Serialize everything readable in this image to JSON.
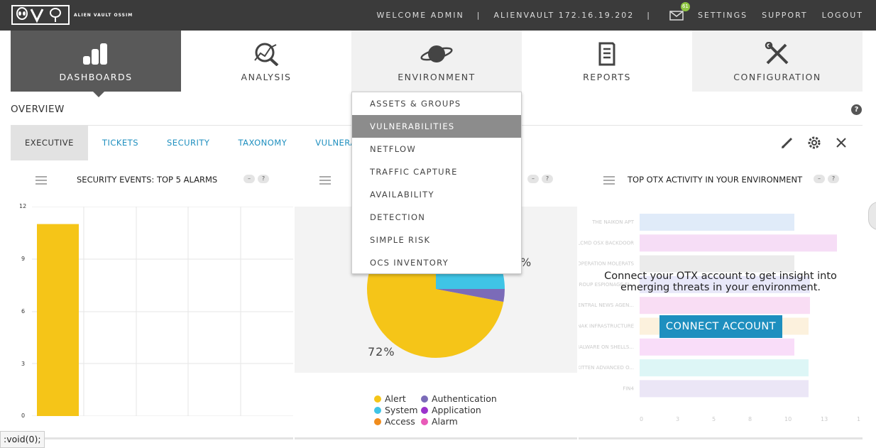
{
  "header": {
    "logo_text": "ALIEN VAULT OSSIM",
    "welcome": "WELCOME ADMIN",
    "separator": "|",
    "host": "ALIENVAULT 172.16.19.202",
    "mail_count": "61",
    "links": [
      "SETTINGS",
      "SUPPORT",
      "LOGOUT"
    ]
  },
  "nav": [
    {
      "label": "DASHBOARDS",
      "icon": "bar-chart-icon"
    },
    {
      "label": "ANALYSIS",
      "icon": "magnifier-chart-icon"
    },
    {
      "label": "ENVIRONMENT",
      "icon": "planet-icon"
    },
    {
      "label": "REPORTS",
      "icon": "document-icon"
    },
    {
      "label": "CONFIGURATION",
      "icon": "tools-icon"
    }
  ],
  "environment_menu": [
    "ASSETS & GROUPS",
    "VULNERABILITIES",
    "NETFLOW",
    "TRAFFIC CAPTURE",
    "AVAILABILITY",
    "DETECTION",
    "SIMPLE RISK",
    "OCS INVENTORY"
  ],
  "page": {
    "title": "OVERVIEW",
    "help": "?"
  },
  "subtabs": [
    "EXECUTIVE",
    "TICKETS",
    "SECURITY",
    "TAXONOMY",
    "VULNERABI"
  ],
  "panels": {
    "alarms": {
      "title": "SECURITY EVENTS: TOP 5 ALARMS",
      "yticks": [
        "12",
        "9",
        "6",
        "3",
        "0"
      ]
    },
    "events": {
      "pie_label_main": "72%",
      "pie_label_side": "%",
      "legend": [
        {
          "label": "Alert",
          "color": "#f5c518"
        },
        {
          "label": "Authentication",
          "color": "#7b6bb8"
        },
        {
          "label": "System",
          "color": "#3fc4e6"
        },
        {
          "label": "Application",
          "color": "#9b33cc"
        },
        {
          "label": "Access",
          "color": "#f08c1c"
        },
        {
          "label": "Alarm",
          "color": "#e85ab8"
        }
      ]
    },
    "otx": {
      "title": "TOP OTX ACTIVITY IN YOUR ENVIRONMENT",
      "message_line1": "Connect your OTX account to get insight into",
      "message_line2": "emerging threats in your environment.",
      "button": "CONNECT ACCOUNT",
      "bar_labels": [
        "THE NAIKON APT",
        "XSLCMD OSX BACKDOOR",
        "OPERATION MOLERATS",
        "EQUATION GROUP ESPIONAGE FI...",
        "KOREAN CENTRAL NEWS AGEN...",
        "ANUNAK INFRASTRUCTURE",
        "NEW ELF MALWARE ON SHELLS...",
        "ROCKET KITTEN ADVANCED O...",
        "FIN4"
      ],
      "xticks": [
        "0",
        "3",
        "5",
        "8",
        "10",
        "13",
        "1"
      ]
    }
  },
  "chart_data": [
    {
      "type": "bar",
      "title": "SECURITY EVENTS: TOP 5 ALARMS",
      "categories": [
        ""
      ],
      "values": [
        11
      ],
      "ylim": [
        0,
        12
      ],
      "yticks": [
        0,
        3,
        6,
        9,
        12
      ],
      "color": "#f5c518"
    },
    {
      "type": "pie",
      "categories": [
        "Alert",
        "Authentication",
        "System",
        "Application",
        "Access",
        "Alarm"
      ],
      "values": [
        72,
        3,
        25,
        0,
        0,
        0
      ]
    }
  ],
  "statusbar": ":void(0);"
}
